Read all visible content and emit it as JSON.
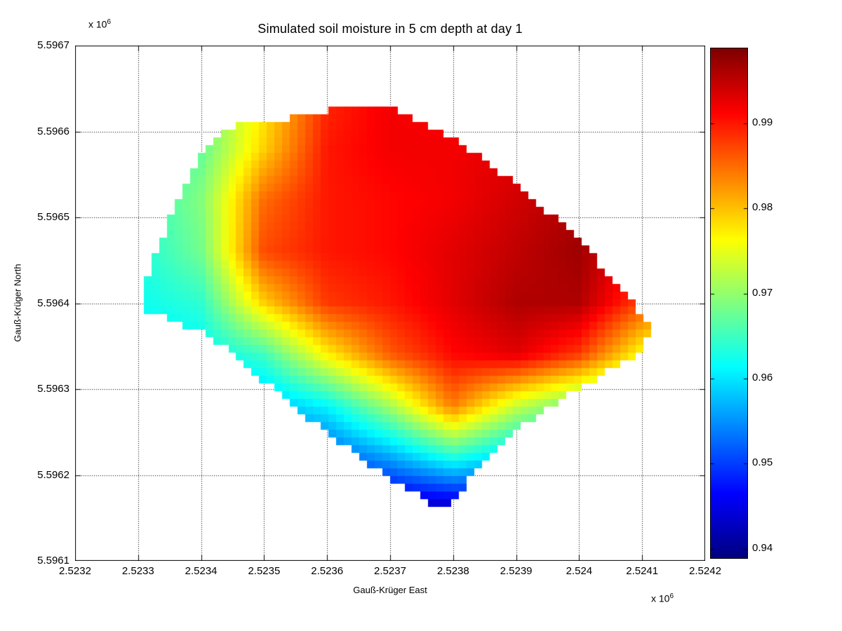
{
  "figure": {
    "background_color": "#ffffff",
    "axes_color": "#000000",
    "grid_style": "dotted"
  },
  "chart_data": {
    "type": "heatmap",
    "title": "Simulated soil moisture in 5 cm depth at day 1",
    "xlabel": "Gauß-Krüger East",
    "ylabel": "Gauß-Krüger North",
    "x_exponent_text": "x 10",
    "x_exponent_power": "6",
    "y_exponent_text": "x 10",
    "y_exponent_power": "6",
    "xlim": [
      2.5232,
      2.5242
    ],
    "ylim": [
      5.5961,
      5.5967
    ],
    "x_ticks": [
      2.5232,
      2.5233,
      2.5234,
      2.5235,
      2.5236,
      2.5237,
      2.5238,
      2.5239,
      2.524,
      2.5241,
      2.5242
    ],
    "x_tick_labels": [
      "2.5232",
      "2.5233",
      "2.5234",
      "2.5235",
      "2.5236",
      "2.5237",
      "2.5238",
      "2.5239",
      "2.524",
      "2.5241",
      "2.5242"
    ],
    "y_ticks": [
      5.5961,
      5.5962,
      5.5963,
      5.5964,
      5.5965,
      5.5966,
      5.5967
    ],
    "y_tick_labels": [
      "5.5961",
      "5.5962",
      "5.5963",
      "5.5964",
      "5.5965",
      "5.5966",
      "5.5967"
    ],
    "grid": true,
    "colormap": "jet",
    "clim": [
      0.9389,
      0.9988
    ],
    "colorbar_ticks": [
      0.94,
      0.95,
      0.96,
      0.97,
      0.98,
      0.99
    ],
    "colorbar_tick_labels": [
      "0.94",
      "0.95",
      "0.96",
      "0.97",
      "0.98",
      "0.99"
    ],
    "mask_polygon_uv": [
      [
        0.105,
        0.49
      ],
      [
        0.12,
        0.575
      ],
      [
        0.155,
        0.675
      ],
      [
        0.205,
        0.795
      ],
      [
        0.235,
        0.838
      ],
      [
        0.3,
        0.852
      ],
      [
        0.37,
        0.864
      ],
      [
        0.402,
        0.872
      ],
      [
        0.408,
        0.885
      ],
      [
        0.5,
        0.88
      ],
      [
        0.537,
        0.862
      ],
      [
        0.61,
        0.812
      ],
      [
        0.695,
        0.735
      ],
      [
        0.79,
        0.638
      ],
      [
        0.872,
        0.52
      ],
      [
        0.917,
        0.448
      ],
      [
        0.893,
        0.402
      ],
      [
        0.82,
        0.348
      ],
      [
        0.742,
        0.288
      ],
      [
        0.66,
        0.212
      ],
      [
        0.617,
        0.143
      ],
      [
        0.586,
        0.096
      ],
      [
        0.53,
        0.136
      ],
      [
        0.45,
        0.202
      ],
      [
        0.37,
        0.277
      ],
      [
        0.29,
        0.357
      ],
      [
        0.218,
        0.432
      ]
    ],
    "value_grid": {
      "description": "soil moisture control values, rows top(v=1) to bottom(v=0), cols u=0..1 step 0.1",
      "values": [
        [
          0.966,
          0.967,
          0.969,
          0.977,
          0.989,
          0.992,
          0.991,
          0.991,
          0.992,
          0.986,
          0.98
        ],
        [
          0.965,
          0.966,
          0.968,
          0.977,
          0.989,
          0.992,
          0.991,
          0.991,
          0.993,
          0.987,
          0.981
        ],
        [
          0.964,
          0.965,
          0.967,
          0.979,
          0.99,
          0.992,
          0.992,
          0.993,
          0.994,
          0.988,
          0.982
        ],
        [
          0.963,
          0.964,
          0.969,
          0.985,
          0.99,
          0.991,
          0.992,
          0.994,
          0.996,
          0.99,
          0.983
        ],
        [
          0.962,
          0.963,
          0.968,
          0.987,
          0.99,
          0.991,
          0.993,
          0.995,
          0.997,
          0.991,
          0.984
        ],
        [
          0.961,
          0.962,
          0.964,
          0.979,
          0.988,
          0.99,
          0.993,
          0.996,
          0.996,
          0.987,
          0.977
        ],
        [
          0.96,
          0.96,
          0.961,
          0.965,
          0.977,
          0.986,
          0.991,
          0.993,
          0.988,
          0.976,
          0.97
        ],
        [
          0.958,
          0.957,
          0.956,
          0.957,
          0.961,
          0.971,
          0.984,
          0.973,
          0.967,
          0.963,
          0.96
        ],
        [
          0.955,
          0.953,
          0.951,
          0.95,
          0.951,
          0.956,
          0.963,
          0.958,
          0.955,
          0.953,
          0.95
        ],
        [
          0.95,
          0.948,
          0.946,
          0.944,
          0.943,
          0.942,
          0.942,
          0.943,
          0.945,
          0.946,
          0.946
        ],
        [
          0.948,
          0.946,
          0.944,
          0.942,
          0.941,
          0.94,
          0.939,
          0.94,
          0.942,
          0.944,
          0.944
        ]
      ]
    }
  }
}
